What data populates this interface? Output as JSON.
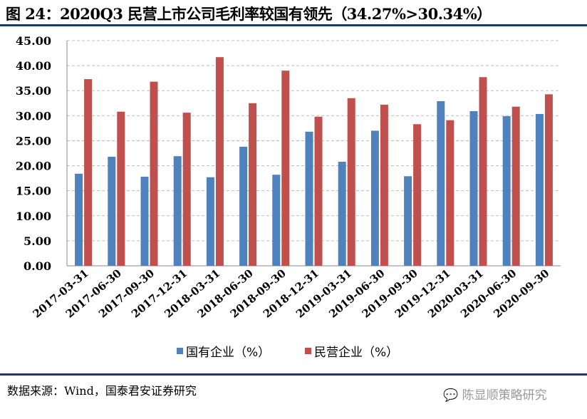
{
  "chart_data": {
    "type": "bar",
    "title": "图 24：2020Q3 民营上市公司毛利率较国有领先（34.27%>30.34%）",
    "categories": [
      "2017-03-31",
      "2017-06-30",
      "2017-09-30",
      "2017-12-31",
      "2018-03-31",
      "2018-06-30",
      "2018-09-30",
      "2018-12-31",
      "2019-03-31",
      "2019-06-30",
      "2019-09-30",
      "2019-12-31",
      "2020-03-31",
      "2020-06-30",
      "2020-09-30"
    ],
    "series": [
      {
        "name": "国有企业（%）",
        "color": "#4f81bd",
        "values": [
          18.4,
          21.8,
          17.8,
          21.9,
          17.7,
          23.8,
          18.2,
          26.8,
          20.8,
          27.0,
          17.9,
          32.9,
          30.9,
          29.9,
          30.34
        ]
      },
      {
        "name": "民营企业（%）",
        "color": "#c0504d",
        "values": [
          37.3,
          30.8,
          36.8,
          30.6,
          41.7,
          32.5,
          39.0,
          29.8,
          33.5,
          32.2,
          28.3,
          29.1,
          37.7,
          31.8,
          34.27
        ]
      }
    ],
    "ylim": [
      0,
      45
    ],
    "yticks": [
      "0.00",
      "5.00",
      "10.00",
      "15.00",
      "20.00",
      "25.00",
      "30.00",
      "35.00",
      "40.00",
      "45.00"
    ],
    "grid": true,
    "legend": "bottom"
  },
  "source": "数据来源：Wind，国泰君安证券研究",
  "watermark": "陈显顺策略研究"
}
